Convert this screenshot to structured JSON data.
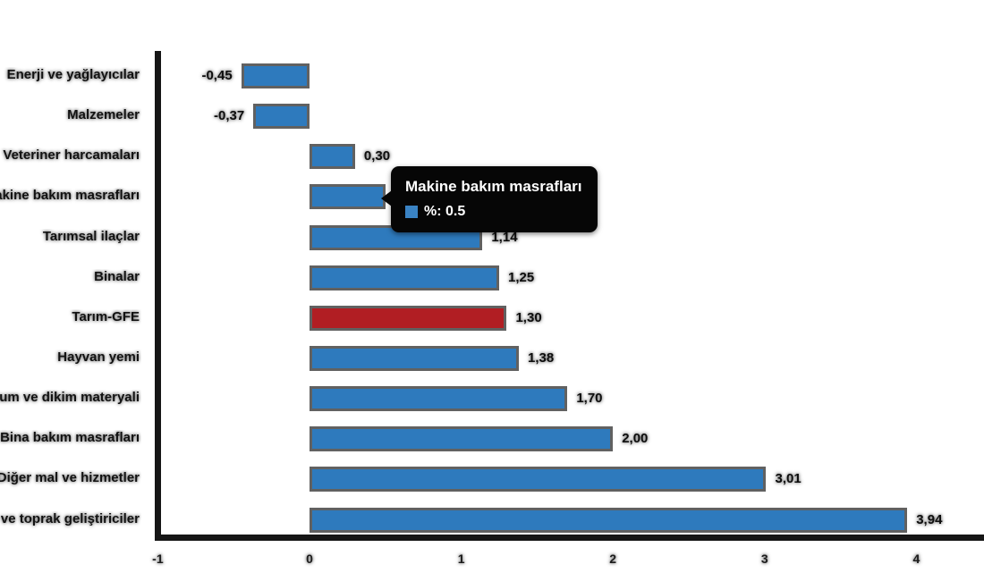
{
  "chart_data": {
    "type": "bar",
    "orientation": "horizontal",
    "title": "",
    "xlabel": "",
    "ylabel": "",
    "categories": [
      "Enerji ve yağlayıcılar",
      "Malzemeler",
      "Veteriner harcamaları",
      "Makine bakım masrafları",
      "Tarımsal ilaçlar",
      "Binalar",
      "Tarım-GFE",
      "Hayvan yemi",
      "Tohum ve dikim materyali",
      "Bina bakım masrafları",
      "Diğer mal ve hizmetler",
      "Gübre ve toprak geliştiriciler"
    ],
    "values": [
      -0.45,
      -0.37,
      0.3,
      0.5,
      1.14,
      1.25,
      1.3,
      1.38,
      1.7,
      2.0,
      3.01,
      3.94
    ],
    "value_labels": [
      "-0,45",
      "-0,37",
      "0,30",
      "0,50",
      "1,14",
      "1,25",
      "1,30",
      "1,38",
      "1,70",
      "2,00",
      "3,01",
      "3,94"
    ],
    "series_name": "%",
    "highlight_index": 6,
    "xlim": [
      -1,
      4
    ],
    "x_ticks": [
      -1,
      0,
      1,
      2,
      3,
      4
    ],
    "x_tick_labels": [
      "-1",
      "0",
      "1",
      "2",
      "3",
      "4"
    ],
    "grid": false,
    "legend": false,
    "colors": {
      "bar": "#2e7abd",
      "highlight": "#b11e23",
      "bar_border": "#616161",
      "axis": "#161616",
      "text": "#121212",
      "tooltip_bg": "#060606",
      "tooltip_text": "#ffffff",
      "tooltip_swatch": "#3a83c4"
    }
  },
  "tooltip": {
    "title": "Makine bakım masrafları",
    "text": "%: 0.5"
  }
}
